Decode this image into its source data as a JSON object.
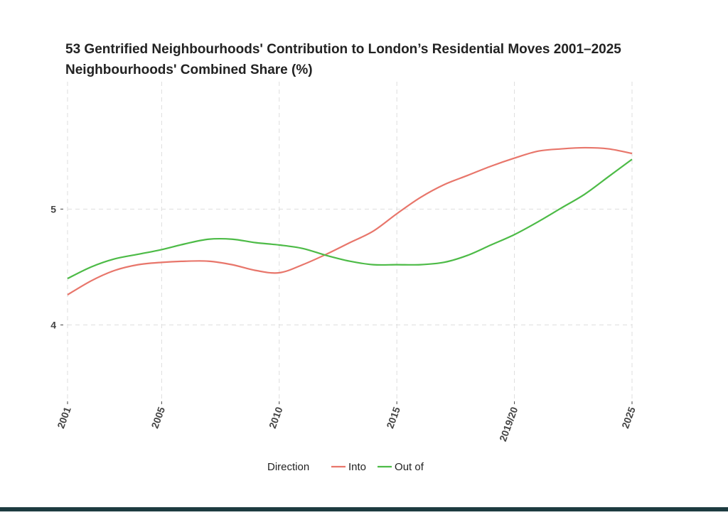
{
  "chart_data": {
    "type": "line",
    "title": "53 Gentrified Neighbourhoods' Contribution to London’s Residential Moves 2001–2025",
    "subtitle": "Neighbourhoods' Combined Share (%)",
    "x": [
      2001,
      2002,
      2003,
      2004,
      2005,
      2006,
      2007,
      2008,
      2009,
      2010,
      2011,
      2012,
      2013,
      2014,
      2015,
      2016,
      2017,
      2018,
      2019,
      2020,
      2021,
      2022,
      2023,
      2024,
      2025
    ],
    "series": [
      {
        "name": "Into",
        "color": "#e8766b",
        "values": [
          4.26,
          4.38,
          4.47,
          4.52,
          4.54,
          4.55,
          4.55,
          4.52,
          4.47,
          4.45,
          4.52,
          4.61,
          4.71,
          4.81,
          4.96,
          5.1,
          5.21,
          5.29,
          5.37,
          5.44,
          5.5,
          5.52,
          5.53,
          5.52,
          5.48
        ]
      },
      {
        "name": "Out of",
        "color": "#4dbb47",
        "values": [
          4.4,
          4.5,
          4.57,
          4.61,
          4.65,
          4.7,
          4.74,
          4.74,
          4.71,
          4.69,
          4.66,
          4.6,
          4.55,
          4.52,
          4.52,
          4.52,
          4.54,
          4.6,
          4.69,
          4.78,
          4.89,
          5.01,
          5.13,
          5.28,
          5.43
        ]
      }
    ],
    "legend_title": "Direction",
    "xlim": [
      2001,
      2025
    ],
    "xticks": [
      2001,
      2005,
      2010,
      2015,
      {
        "value": 2020,
        "label": "2019/20"
      },
      2025
    ],
    "ylim": [
      3.34,
      6.1
    ],
    "yticks": [
      4,
      5
    ],
    "grid": true,
    "legend_position": "bottom"
  }
}
